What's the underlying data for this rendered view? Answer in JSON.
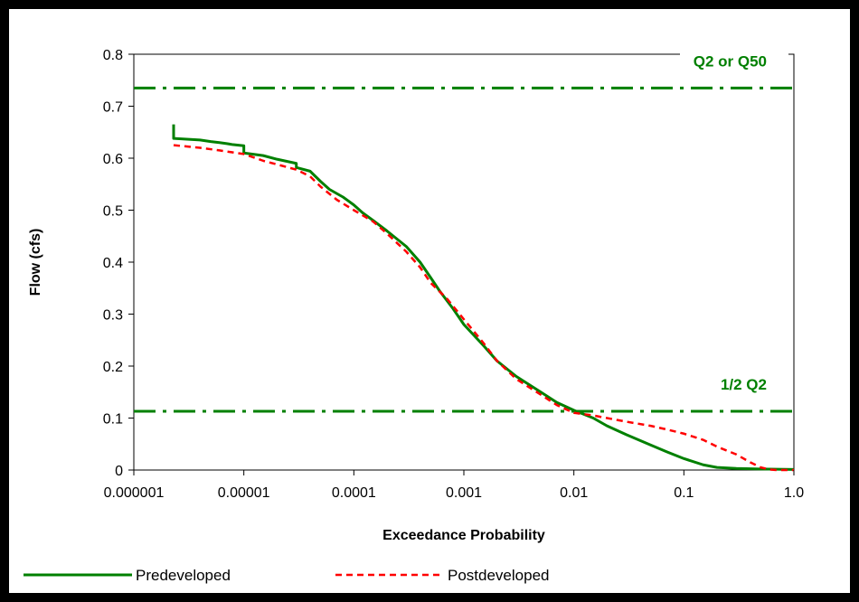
{
  "chart_data": {
    "type": "line",
    "xlabel": "Exceedance Probability",
    "ylabel": "Flow (cfs)",
    "x_scale": "log",
    "xlim": [
      1e-06,
      1.0
    ],
    "ylim": [
      0,
      0.8
    ],
    "x_ticks": [
      1e-06,
      1e-05,
      0.0001,
      0.001,
      0.01,
      0.1,
      1.0
    ],
    "x_tick_labels": [
      "0.000001",
      "0.00001",
      "0.0001",
      "0.001",
      "0.01",
      "0.1",
      "1.0"
    ],
    "y_ticks": [
      0,
      0.1,
      0.2,
      0.3,
      0.4,
      0.5,
      0.6,
      0.7,
      0.8
    ],
    "y_tick_labels": [
      "0",
      "0.1",
      "0.2",
      "0.3",
      "0.4",
      "0.5",
      "0.6",
      "0.7",
      "0.8"
    ],
    "grid": false,
    "legend_position": "bottom",
    "series": [
      {
        "name": "Predeveloped",
        "color": "#008000",
        "style": "solid",
        "x": [
          2.3e-06,
          2.3e-06,
          2.3e-06,
          4e-06,
          5e-06,
          6e-06,
          7e-06,
          8e-06,
          1e-05,
          1e-05,
          1.5e-05,
          2e-05,
          3e-05,
          3e-05,
          4e-05,
          5e-05,
          6e-05,
          8e-05,
          0.0001,
          0.00012,
          0.00015,
          0.0002,
          0.0003,
          0.0004,
          0.0005,
          0.0006,
          0.0008,
          0.001,
          0.0015,
          0.002,
          0.003,
          0.005,
          0.007,
          0.01,
          0.015,
          0.02,
          0.03,
          0.05,
          0.07,
          0.1,
          0.15,
          0.2,
          0.3,
          0.5,
          0.7,
          1.0
        ],
        "y": [
          0.665,
          0.64,
          0.638,
          0.635,
          0.632,
          0.63,
          0.628,
          0.626,
          0.624,
          0.61,
          0.605,
          0.598,
          0.59,
          0.582,
          0.575,
          0.555,
          0.54,
          0.525,
          0.51,
          0.495,
          0.48,
          0.46,
          0.43,
          0.4,
          0.37,
          0.345,
          0.31,
          0.28,
          0.24,
          0.21,
          0.18,
          0.15,
          0.13,
          0.115,
          0.1,
          0.085,
          0.068,
          0.048,
          0.035,
          0.022,
          0.01,
          0.005,
          0.003,
          0.002,
          0.0015,
          0.001
        ]
      },
      {
        "name": "Postdeveloped",
        "color": "#ff0000",
        "style": "dashed",
        "x": [
          2.3e-06,
          4e-06,
          6e-06,
          1e-05,
          1.5e-05,
          2e-05,
          3e-05,
          4e-05,
          5e-05,
          7e-05,
          0.0001,
          0.00015,
          0.0002,
          0.0003,
          0.0004,
          0.0005,
          0.0007,
          0.001,
          0.0015,
          0.002,
          0.003,
          0.005,
          0.007,
          0.01,
          0.015,
          0.02,
          0.03,
          0.05,
          0.07,
          0.1,
          0.15,
          0.2,
          0.3,
          0.4,
          0.5,
          0.6,
          0.7,
          1.0
        ],
        "y": [
          0.625,
          0.62,
          0.615,
          0.608,
          0.595,
          0.588,
          0.578,
          0.565,
          0.545,
          0.52,
          0.5,
          0.478,
          0.455,
          0.42,
          0.39,
          0.36,
          0.33,
          0.29,
          0.245,
          0.21,
          0.175,
          0.145,
          0.125,
          0.11,
          0.105,
          0.1,
          0.093,
          0.085,
          0.078,
          0.07,
          0.058,
          0.045,
          0.03,
          0.015,
          0.005,
          0.001,
          0.0,
          0.0
        ]
      }
    ],
    "reference_lines": [
      {
        "label": "Q2 or  Q50",
        "y": 0.735,
        "color": "#008000",
        "style": "dash-dot"
      },
      {
        "label": "1/2 Q2",
        "y": 0.113,
        "color": "#008000",
        "style": "dash-dot"
      }
    ]
  }
}
